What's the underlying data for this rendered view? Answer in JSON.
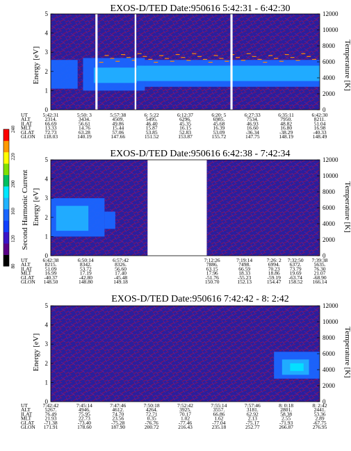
{
  "colors": {
    "background": "#ffffff",
    "spectrogram_background": "#2a1f9c",
    "noise_red": "#9a0f4a",
    "noise_purple": "#5a1aa8",
    "band_blue": "#1a66ff",
    "band_light": "#21b4ff",
    "band_cyan": "#00e8ff",
    "data_gap": "#ffffff"
  },
  "colorbar": {
    "label": "Second Harmonic Current",
    "ticks": [
      "80",
      "120",
      "160",
      "200",
      "220",
      "240"
    ],
    "colors": [
      "#000000",
      "#5a0088",
      "#3a14c8",
      "#1040ff",
      "#1a66ff",
      "#21b4ff",
      "#00e8ff",
      "#00c060",
      "#80e000",
      "#ffff00",
      "#ff9900",
      "#ff0000"
    ]
  },
  "orbit_row_labels": [
    "UT",
    "ALT",
    "ILAT",
    "MLT",
    "GLAT",
    "GLON"
  ],
  "chart_data": [
    {
      "type": "heatmap",
      "title": "EXOS-D/TED   Date:950616  5:42:31 - 6:42:30",
      "ylabel": "Energy [eV]",
      "y2label": "Temperature [K]",
      "ylim": [
        0,
        5
      ],
      "yticks": [
        "0",
        "1",
        "2",
        "3",
        "4",
        "5"
      ],
      "y2lim": [
        0,
        12000
      ],
      "y2ticks": [
        "0",
        "2000",
        "4000",
        "6000",
        "8000",
        "10000",
        "12000"
      ],
      "x": [
        "5:42:31",
        "5:50: 3",
        "5:57:38",
        "6: 5:22",
        "6:12:37",
        "6:20: 5",
        "6:27:33",
        "6:35:11",
        "6:42:30"
      ],
      "orbit": {
        "UT": [
          "5:42:31",
          "5:50: 3",
          "5:57:38",
          "6: 5:22",
          "6:12:37",
          "6:20: 5",
          "6:27:33",
          "6:35:11",
          "6:42:30"
        ],
        "ALT": [
          "2314.",
          "3434.",
          "4509.",
          "5495.",
          "6296.",
          "6985.",
          "7534.",
          "7950.",
          "8211."
        ],
        "ILAT": [
          "66.69",
          "56.61",
          "49.86",
          "46.40",
          "45.35",
          "45.68",
          "46.93",
          "48.82",
          "51.04"
        ],
        "MLT": [
          "13.33",
          "14.76",
          "15.44",
          "15.87",
          "16.15",
          "16.39",
          "16.60",
          "16.80",
          "16.98"
        ],
        "GLAT": [
          "72.73",
          "63.28",
          "57.06",
          "53.85",
          "52.83",
          "53.09",
          "-36.34",
          "-38.29",
          "-40.33"
        ],
        "GLON": [
          "118.03",
          "140.19",
          "147.66",
          "151.52",
          "153.87",
          "155.72",
          "147.75",
          "148.19",
          "148.49"
        ]
      },
      "band_center_ev": 1.8,
      "gaps": [
        [
          0.166,
          0.174
        ],
        [
          0.312,
          0.318
        ],
        [
          0.668,
          0.676
        ]
      ],
      "features": [
        "low-energy band ~1.5-2.5 eV",
        "sparse emission ~2.5-3.0 eV",
        "spike near 5:56 UT"
      ]
    },
    {
      "type": "heatmap",
      "title": "EXOS-D/TED   Date:950616  6:42:38 - 7:42:34",
      "ylabel": "Energy [eV]",
      "y2label": "Temperature [K]",
      "ylim": [
        0,
        5
      ],
      "yticks": [
        "0",
        "1",
        "2",
        "3",
        "4",
        "5"
      ],
      "y2lim": [
        0,
        12000
      ],
      "y2ticks": [
        "0",
        "2000",
        "4000",
        "6000",
        "8000",
        "10000",
        "12000"
      ],
      "x": [
        "6:42:38",
        "6:50:14",
        "6:57:42",
        "7:12:26",
        "7:19:14",
        "7:26: 2",
        "7:32:50",
        "7:39:38"
      ],
      "orbit": {
        "UT": [
          "6:42:38",
          "6:50:14",
          "6:57:42",
          "7:12:26",
          "7:19:14",
          "7:26: 2",
          "7:32:50",
          "7:39:38"
        ],
        "ALT": [
          "8215.",
          "8342.",
          "8326.",
          "7886.",
          "7498.",
          "6994.",
          "6372.",
          "5635."
        ],
        "ILAT": [
          "51.09",
          "53.72",
          "56.60",
          "63.15",
          "66.59",
          "70.23",
          "73.79",
          "76.30"
        ],
        "MLT": [
          "16.99",
          "17.19",
          "17.40",
          "17.96",
          "18.33",
          "18.86",
          "19.69",
          "21.07"
        ],
        "GLAT": [
          "-40.37",
          "-42.80",
          "-45.48",
          "-51.76",
          "-55.23",
          "-59.19",
          "-63.74",
          "-68.90"
        ],
        "GLON": [
          "148.50",
          "148.80",
          "149.18",
          "150.70",
          "152.13",
          "154.47",
          "158.52",
          "166.14"
        ]
      },
      "band_center_ev": 2.0,
      "gaps": [
        [
          0.36,
          0.58
        ]
      ],
      "features": [
        "band 1-3 eV fading out by 6:52 UT",
        "data gap ~7:00-7:10 UT"
      ]
    },
    {
      "type": "heatmap",
      "title": "EXOS-D/TED   Date:950616  7:42:42 - 8: 2:42",
      "ylabel": "Energy [eV]",
      "y2label": "Temperature [K]",
      "ylim": [
        0,
        5
      ],
      "yticks": [
        "0",
        "1",
        "2",
        "3",
        "4",
        "5"
      ],
      "y2lim": [
        0,
        12000
      ],
      "y2ticks": [
        "0",
        "2000",
        "4000",
        "6000",
        "8000",
        "10000",
        "12000"
      ],
      "x": [
        "7:42:42",
        "7:45:14",
        "7:47:46",
        "7:50:18",
        "7:52:42",
        "7:55:14",
        "7:57:46",
        "8: 0:18",
        "8: 2:42"
      ],
      "orbit": {
        "UT": [
          "7:42:42",
          "7:45:14",
          "7:47:46",
          "7:50:18",
          "7:52:42",
          "7:55:14",
          "7:57:46",
          "8: 0:18",
          "8: 2:42"
        ],
        "ALT": [
          "5267.",
          "4946.",
          "4612.",
          "4264.",
          "3925.",
          "3557.",
          "3181.",
          "2801.",
          "2441."
        ],
        "ILAT": [
          "76.49",
          "75.95",
          "74.70",
          "72.71",
          "70.17",
          "66.86",
          "62.92",
          "58.38",
          "53.36"
        ],
        "MLT": [
          "21.93",
          "22.73",
          "23.56",
          "0.35",
          "1.02",
          "1.62",
          "2.13",
          "2.55",
          "2.89"
        ],
        "GLAT": [
          "-71.38",
          "-73.40",
          "-75.28",
          "-76.76",
          "-77.46",
          "-77.04",
          "-75.17",
          "-71.93",
          "-67.75"
        ],
        "GLON": [
          "171.91",
          "178.60",
          "187.90",
          "200.72",
          "216.43",
          "235.18",
          "252.77",
          "266.87",
          "276.95"
        ]
      },
      "band_center_ev": 1.7,
      "gaps": [],
      "features": [
        "band 1.2-2.5 eV appears after 7:59 UT"
      ]
    }
  ]
}
